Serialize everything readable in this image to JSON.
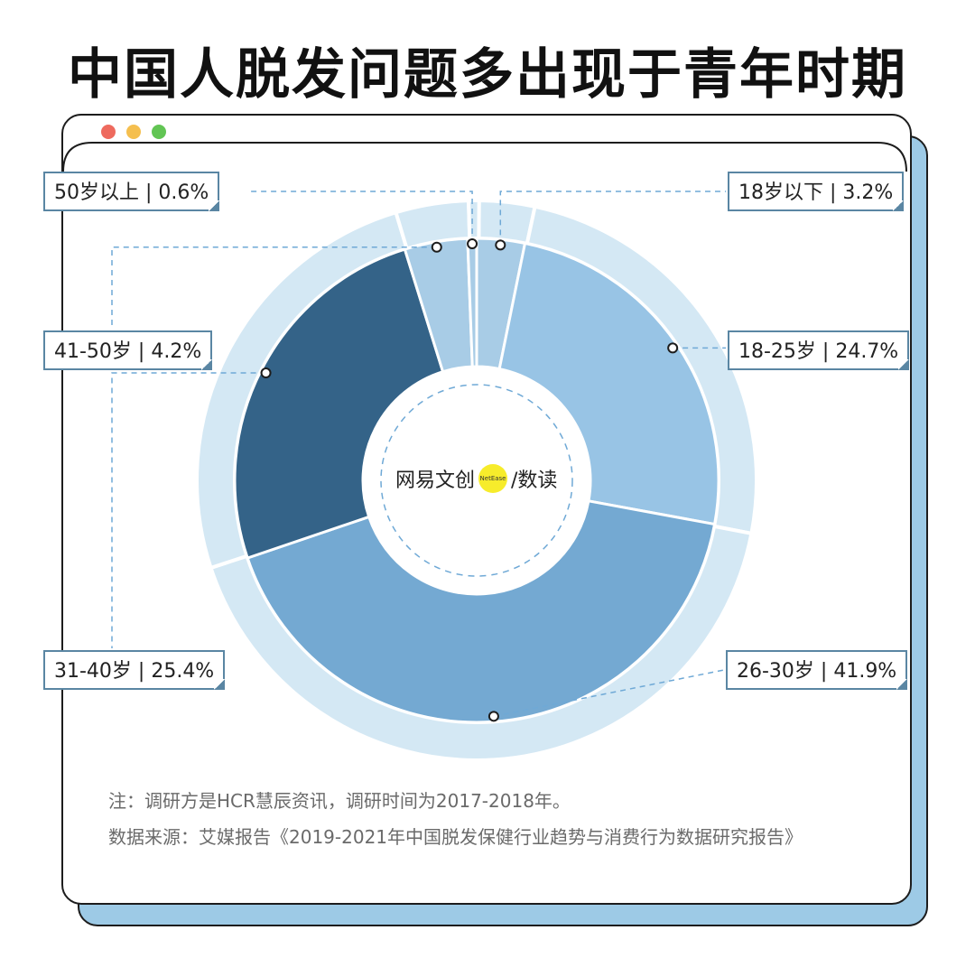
{
  "title": "中国人脱发问题多出现于青年时期",
  "logo": {
    "brand": "网易文创",
    "badge": "NetEase",
    "suffix": "/数读"
  },
  "notes": [
    "注：调研方是HCR慧辰资讯，调研时间为2017-2018年。",
    "数据来源：艾媒报告《2019-2021年中国脱发保健行业趋势与消费行为数据研究报告》"
  ],
  "chart_data": {
    "type": "pie",
    "categories": [
      "18岁以下",
      "18-25岁",
      "26-30岁",
      "31-40岁",
      "41-50岁",
      "50岁以上"
    ],
    "values": [
      3.2,
      24.7,
      41.9,
      25.4,
      4.2,
      0.6
    ],
    "labels": [
      "18岁以下 | 3.2%",
      "18-25岁 | 24.7%",
      "26-30岁 | 41.9%",
      "31-40岁 | 25.4%",
      "41-50岁 | 4.2%",
      "50岁以上 | 0.6%"
    ],
    "colors": [
      "#a8cce6",
      "#98c4e5",
      "#74a9d2",
      "#346388",
      "#a8cce6",
      "#a8cce6"
    ],
    "ring_color": "#d4e8f4"
  }
}
